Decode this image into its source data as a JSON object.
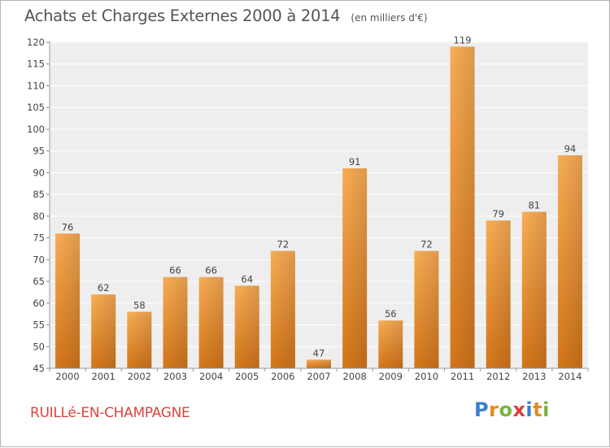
{
  "header": {
    "title": "Achats et Charges Externes 2000 à 2014",
    "unit": "(en milliers d'€)"
  },
  "footer": {
    "place": "RUILLé-EN-CHAMPAGNE",
    "logo": "Proxiti"
  },
  "colors": {
    "bar_light": "#f7a950",
    "bar_dark": "#d87a1c",
    "place_text": "#d9453f",
    "text": "#555555"
  },
  "chart_data": {
    "type": "bar",
    "title": "Achats et Charges Externes 2000 à 2014",
    "subtitle": "(en milliers d'€)",
    "xlabel": "",
    "ylabel": "",
    "categories": [
      "2000",
      "2001",
      "2002",
      "2003",
      "2004",
      "2005",
      "2006",
      "2007",
      "2008",
      "2009",
      "2010",
      "2011",
      "2012",
      "2013",
      "2014"
    ],
    "values": [
      76,
      62,
      58,
      66,
      66,
      64,
      72,
      47,
      91,
      56,
      72,
      119,
      79,
      81,
      94
    ],
    "ylim": [
      45,
      120
    ],
    "yticks": [
      45,
      50,
      55,
      60,
      65,
      70,
      75,
      80,
      85,
      90,
      95,
      100,
      105,
      110,
      115,
      120
    ],
    "grid": true,
    "data_labels": true
  }
}
